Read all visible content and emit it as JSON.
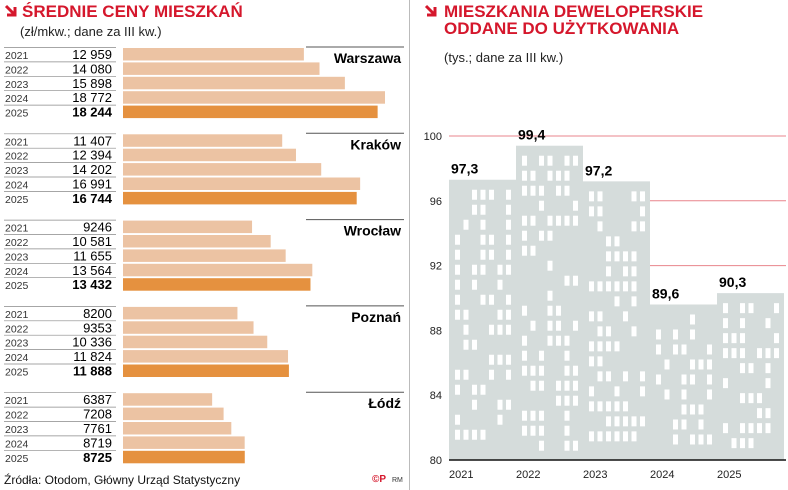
{
  "left": {
    "title": "ŚREDNIE CENY MIESZKAŃ",
    "subtitle": "(zł/mkw.; dane za III kw.)"
  },
  "right": {
    "title_line1": "MIESZKANIA DEWELOPERSKIE",
    "title_line2": "ODDANE DO UŻYTKOWANIA",
    "subtitle": "(tys.; dane za III kw.)"
  },
  "source": "Źródła: Otodom, Główny Urząd Statystyczny",
  "credit": "RM",
  "colors": {
    "accent": "#d5172c",
    "bar_light": "#ecc3a3",
    "bar_highlight": "#e5913f",
    "building": "#d5dcdb",
    "grid": "#e8848c"
  },
  "chart_data": [
    {
      "type": "bar",
      "orientation": "horizontal",
      "title": "ŚREDNIE CENY MIESZKAŃ",
      "unit": "zł/mkw.; dane za III kw.",
      "years": [
        "2021",
        "2022",
        "2023",
        "2024",
        "2025"
      ],
      "groups": [
        {
          "name": "Warszawa",
          "values": [
            12959,
            14080,
            15898,
            18772,
            18244
          ],
          "labels": [
            "12 959",
            "14 080",
            "15 898",
            "18 772",
            "18 244"
          ]
        },
        {
          "name": "Kraków",
          "values": [
            11407,
            12394,
            14202,
            16991,
            16744
          ],
          "labels": [
            "11 407",
            "12 394",
            "14 202",
            "16 991",
            "16 744"
          ]
        },
        {
          "name": "Wrocław",
          "values": [
            9246,
            10581,
            11655,
            13564,
            13432
          ],
          "labels": [
            "9246",
            "10 581",
            "11 655",
            "13 564",
            "13 432"
          ]
        },
        {
          "name": "Poznań",
          "values": [
            8200,
            9353,
            10336,
            11824,
            11888
          ],
          "labels": [
            "8200",
            "9353",
            "10 336",
            "11 824",
            "11 888"
          ]
        },
        {
          "name": "Łódź",
          "values": [
            6387,
            7208,
            7761,
            8719,
            8725
          ],
          "labels": [
            "6387",
            "7208",
            "7761",
            "8719",
            "8725"
          ]
        }
      ]
    },
    {
      "type": "bar",
      "title": "MIESZKANIA DEWELOPERSKIE ODDANE DO UŻYTKOWANIA",
      "unit": "tys.; dane za III kw.",
      "categories": [
        "2021",
        "2022",
        "2023",
        "2024",
        "2025"
      ],
      "values": [
        97.3,
        99.4,
        97.2,
        89.6,
        90.3
      ],
      "labels": [
        "97,3",
        "99,4",
        "97,2",
        "89,6",
        "90,3"
      ],
      "ylim": [
        80,
        100
      ],
      "yticks": [
        80,
        84,
        88,
        92,
        96,
        100
      ],
      "grid": true
    }
  ]
}
